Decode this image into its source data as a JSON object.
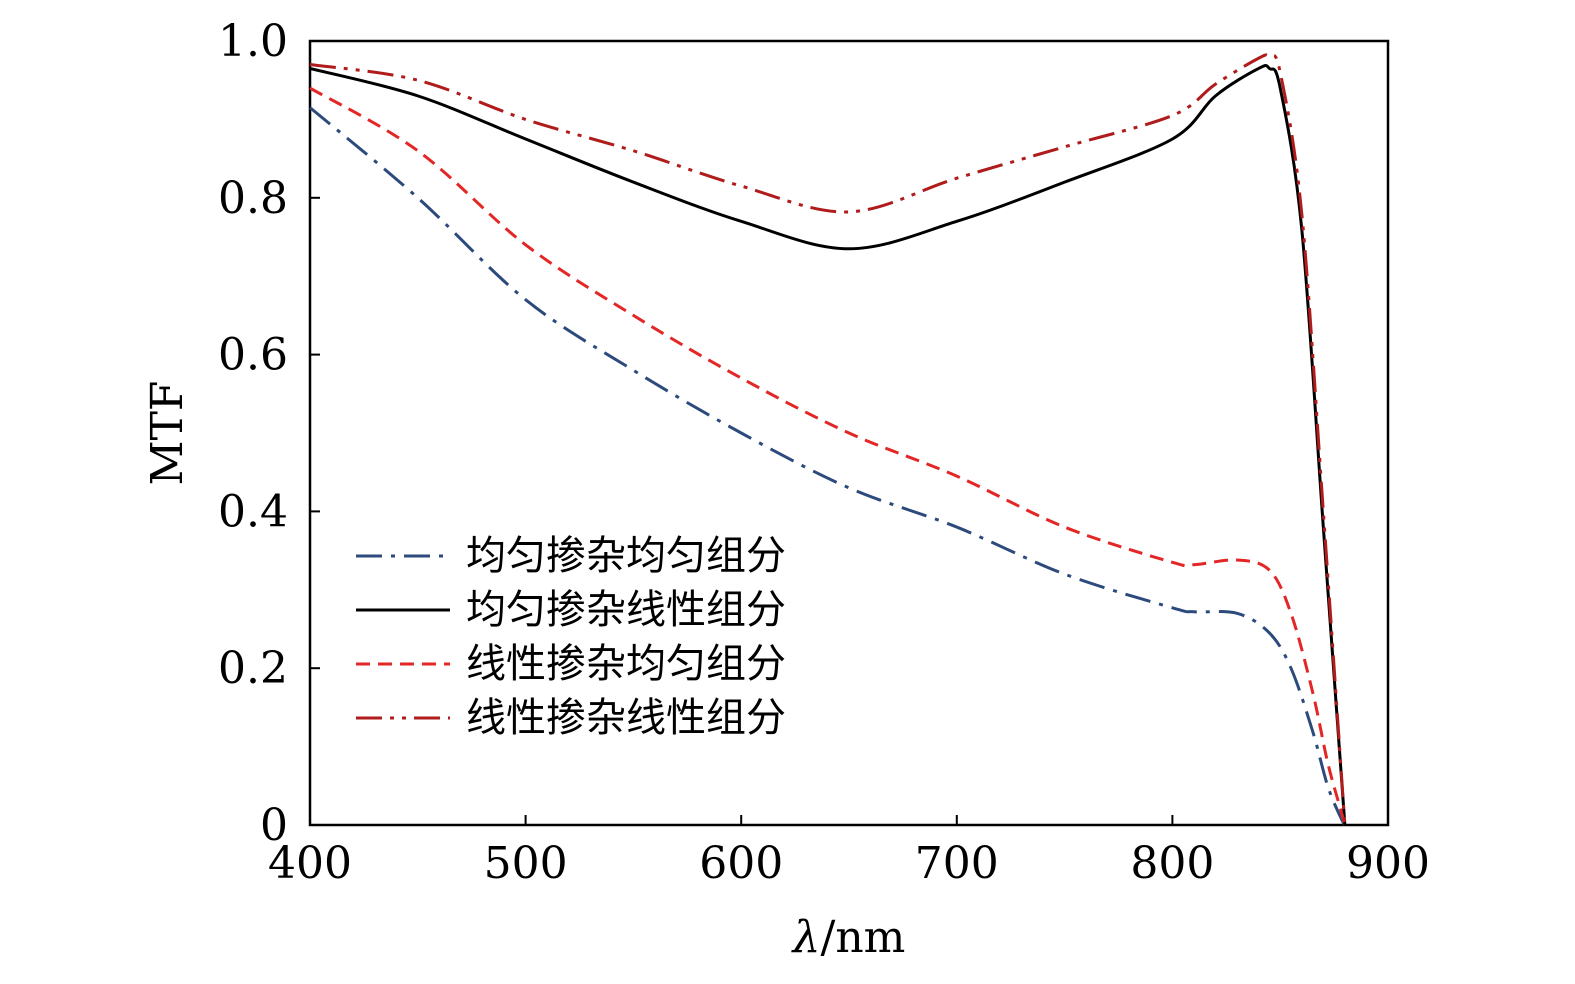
{
  "chart_data": {
    "type": "line",
    "xlabel_symbol": "λ",
    "xlabel_unit": "/nm",
    "ylabel": "MTF",
    "xlim": [
      400,
      900
    ],
    "ylim": [
      0,
      1.0
    ],
    "xticks": [
      400,
      500,
      600,
      700,
      800,
      900
    ],
    "xtick_labels": [
      "400",
      "500",
      "600",
      "700",
      "800",
      "900"
    ],
    "yticks": [
      0,
      0.2,
      0.4,
      0.6,
      0.8,
      1.0
    ],
    "ytick_labels": [
      "0",
      "0.2",
      "0.4",
      "0.6",
      "0.8",
      "1.0"
    ],
    "grid": false,
    "legend_position": "lower-left",
    "series": [
      {
        "name": "均匀掺杂均匀组分",
        "color": "#2c4a7c",
        "dash": "dash-dot",
        "x": [
          400,
          450,
          500,
          550,
          600,
          650,
          700,
          750,
          800,
          810,
          830,
          845,
          855,
          865,
          872,
          878,
          880
        ],
        "y": [
          0.915,
          0.8,
          0.67,
          0.58,
          0.5,
          0.43,
          0.38,
          0.32,
          0.277,
          0.272,
          0.27,
          0.245,
          0.2,
          0.12,
          0.05,
          0.01,
          0.0
        ]
      },
      {
        "name": "均匀掺杂线性组分",
        "color": "#000000",
        "dash": "solid",
        "x": [
          400,
          450,
          500,
          550,
          600,
          650,
          700,
          750,
          800,
          820,
          840,
          845,
          850,
          860,
          870,
          880
        ],
        "y": [
          0.965,
          0.93,
          0.875,
          0.82,
          0.77,
          0.735,
          0.77,
          0.82,
          0.875,
          0.93,
          0.965,
          0.965,
          0.94,
          0.76,
          0.38,
          0.0
        ]
      },
      {
        "name": "线性掺杂均匀组分",
        "color": "#e32626",
        "dash": "dash",
        "x": [
          400,
          450,
          500,
          550,
          600,
          650,
          700,
          750,
          800,
          810,
          830,
          845,
          855,
          865,
          872,
          878,
          880
        ],
        "y": [
          0.94,
          0.86,
          0.74,
          0.65,
          0.57,
          0.5,
          0.445,
          0.38,
          0.335,
          0.332,
          0.338,
          0.325,
          0.27,
          0.17,
          0.08,
          0.02,
          0.0
        ]
      },
      {
        "name": "线性掺杂线性组分",
        "color": "#b01c1c",
        "dash": "dash-dot-dot",
        "x": [
          400,
          450,
          500,
          550,
          600,
          650,
          700,
          750,
          800,
          820,
          840,
          845,
          850,
          860,
          870,
          880
        ],
        "y": [
          0.97,
          0.95,
          0.9,
          0.86,
          0.815,
          0.782,
          0.825,
          0.865,
          0.905,
          0.945,
          0.978,
          0.98,
          0.96,
          0.78,
          0.4,
          0.0
        ]
      }
    ]
  }
}
